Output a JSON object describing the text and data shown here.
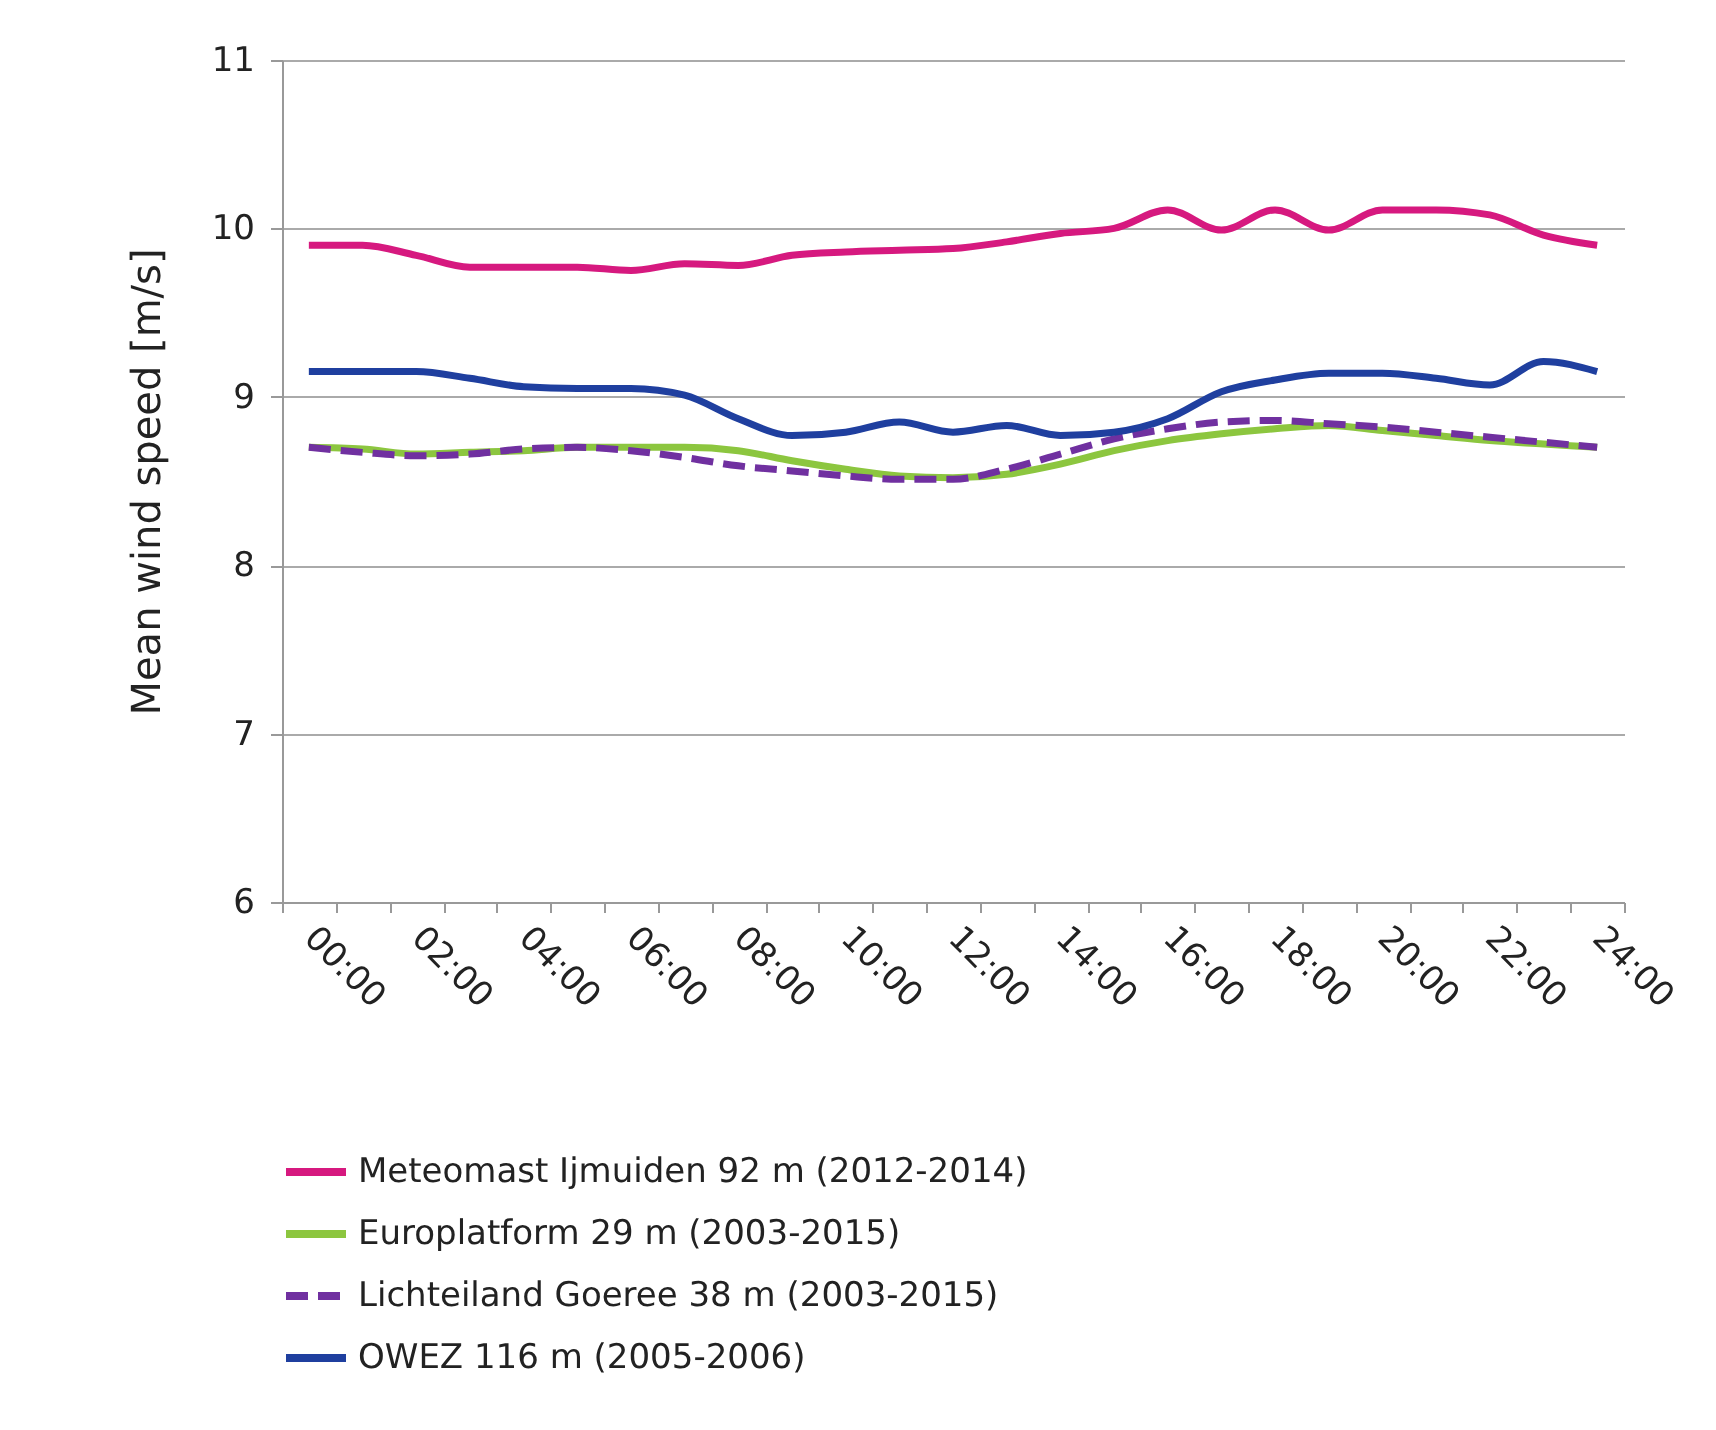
{
  "chart_data": {
    "type": "line",
    "ylabel": "Mean wind speed [m/s]",
    "categories": [
      "00:00",
      null,
      "02:00",
      null,
      "04:00",
      null,
      "06:00",
      null,
      "08:00",
      null,
      "10:00",
      null,
      "12:00",
      null,
      "14:00",
      null,
      "16:00",
      null,
      "18:00",
      null,
      "20:00",
      null,
      "22:00",
      null,
      "24:00"
    ],
    "ylim": [
      6,
      11
    ],
    "yticks": [
      6,
      7,
      8,
      9,
      10,
      11
    ],
    "grid": "y",
    "legend": "bottom",
    "series": [
      {
        "name": "Meteomast Ijmuiden 92 m (2012-2014)",
        "color": "#d6197f",
        "line_style": "solid",
        "values": [
          9.9,
          9.9,
          9.84,
          9.77,
          9.77,
          9.77,
          9.75,
          9.79,
          9.78,
          9.84,
          9.86,
          9.87,
          9.88,
          9.92,
          9.97,
          10.0,
          10.11,
          9.99,
          10.11,
          9.99,
          10.11,
          10.11,
          10.08,
          9.96,
          9.9
        ]
      },
      {
        "name": "Europlatform 29 m (2003-2015)",
        "color": "#8cc63f",
        "line_style": "solid",
        "values": [
          8.7,
          8.69,
          8.66,
          8.67,
          8.68,
          8.7,
          8.7,
          8.7,
          8.68,
          8.62,
          8.57,
          8.53,
          8.52,
          8.54,
          8.6,
          8.68,
          8.74,
          8.78,
          8.81,
          8.83,
          8.8,
          8.77,
          8.74,
          8.72,
          8.7
        ]
      },
      {
        "name": "Lichteiland Goeree 38 m (2003-2015)",
        "color": "#7030a0",
        "line_style": "dashed",
        "values": [
          8.7,
          8.67,
          8.65,
          8.66,
          8.69,
          8.7,
          8.68,
          8.64,
          8.59,
          8.56,
          8.53,
          8.51,
          8.51,
          8.57,
          8.66,
          8.75,
          8.81,
          8.85,
          8.86,
          8.84,
          8.82,
          8.79,
          8.76,
          8.73,
          8.7
        ]
      },
      {
        "name": "OWEZ 116 m (2005-2006)",
        "color": "#1f3f9f",
        "line_style": "solid",
        "values": [
          9.15,
          9.15,
          9.15,
          9.11,
          9.06,
          9.05,
          9.05,
          9.01,
          8.87,
          8.77,
          8.79,
          8.85,
          8.79,
          8.83,
          8.77,
          8.79,
          8.87,
          9.03,
          9.1,
          9.14,
          9.14,
          9.11,
          9.07,
          9.21,
          9.15
        ]
      }
    ]
  }
}
